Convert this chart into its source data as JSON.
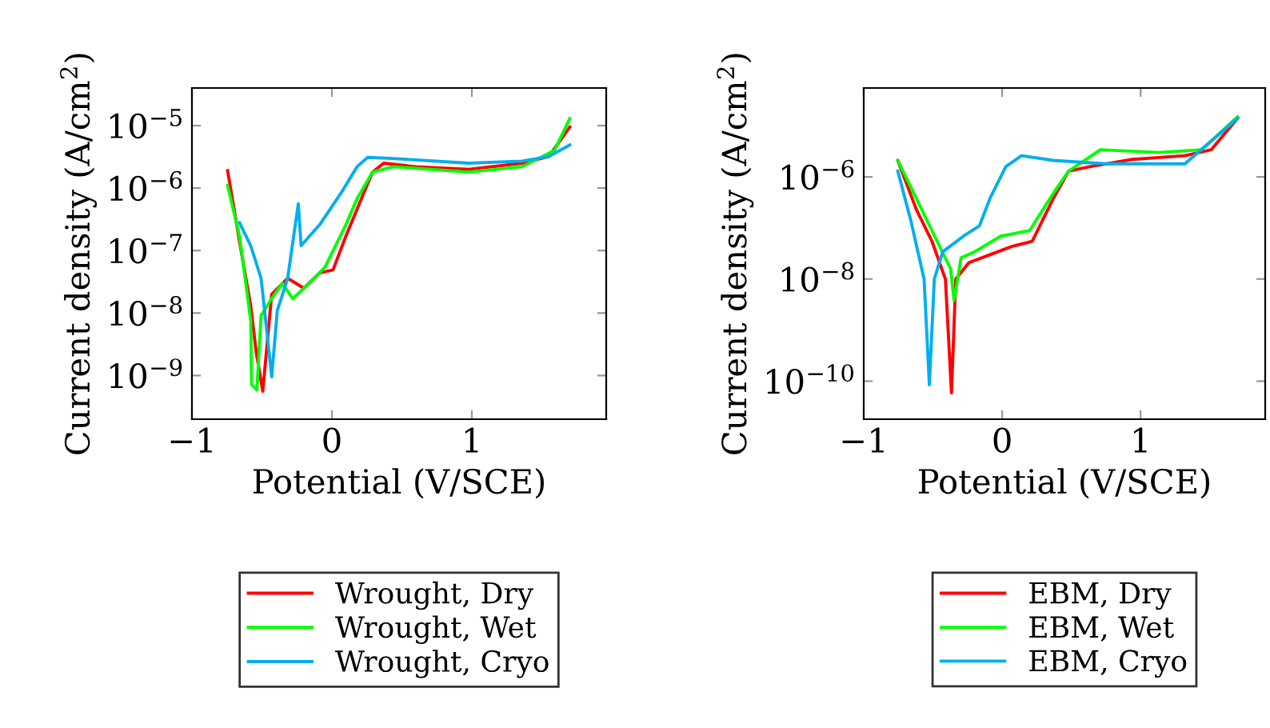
{
  "chart_data": [
    {
      "type": "line",
      "xlabel": "Potential (V/SCE)",
      "ylabel": "Current density (A/cm$^{2}$)",
      "log": "y",
      "legend": "bottom",
      "grid": false,
      "xlim": [
        -1,
        1.96
      ],
      "ylim": [
        2e-10,
        4e-05
      ],
      "xticks": [
        {
          "value": -1,
          "label": "−1"
        },
        0,
        1
      ],
      "yticks": [
        {
          "value": 1e-09,
          "label": "10$^{−9}$"
        },
        {
          "value": 1e-08,
          "label": "10$^{−8}$"
        },
        {
          "value": 1e-07,
          "label": "10$^{−7}$"
        },
        {
          "value": 1e-06,
          "label": "10$^{−6}$"
        },
        {
          "value": 1e-05,
          "label": "10$^{−5}$"
        }
      ],
      "series": [
        {
          "name": "Wrought, Dry",
          "color": "#ff0000",
          "x": [
            -0.745,
            -0.66,
            -0.58,
            -0.54,
            -0.494,
            -0.43,
            -0.316,
            -0.2,
            -0.087,
            0.008,
            0.1,
            0.18,
            0.29,
            0.37,
            0.6,
            0.98,
            1.36,
            1.55,
            1.7
          ],
          "values": [
            1.9e-06,
            1.4e-07,
            1.3e-08,
            2.3e-09,
            5.6e-10,
            2e-08,
            3.6e-08,
            2.5e-08,
            4.4e-08,
            4.9e-08,
            1.7e-07,
            4.6e-07,
            1.8e-06,
            2.5e-06,
            2.2e-06,
            2e-06,
            2.5e-06,
            3.2e-06,
            9.5e-06
          ]
        },
        {
          "name": "Wrought, Wet",
          "color": "#00ff00",
          "x": [
            -0.745,
            -0.66,
            -0.58,
            -0.574,
            -0.536,
            -0.506,
            -0.43,
            -0.354,
            -0.28,
            -0.163,
            -0.05,
            0.1,
            0.18,
            0.29,
            0.44,
            0.98,
            1.36,
            1.59,
            1.7
          ],
          "values": [
            1.1e-06,
            1.7e-07,
            7.6e-09,
            7.2e-10,
            5.9e-10,
            9.1e-09,
            1.7e-08,
            3e-08,
            1.7e-08,
            3e-08,
            5.4e-08,
            2.6e-07,
            6.8e-07,
            1.8e-06,
            2.2e-06,
            1.8e-06,
            2.2e-06,
            4e-06,
            1.3e-05
          ]
        },
        {
          "name": "Wrought, Cryo",
          "color": "#00aeef",
          "x": [
            -0.66,
            -0.58,
            -0.506,
            -0.43,
            -0.39,
            -0.316,
            -0.24,
            -0.22,
            -0.087,
            0.065,
            0.18,
            0.255,
            0.41,
            0.98,
            1.36,
            1.55,
            1.7
          ],
          "values": [
            2.8e-07,
            1.2e-07,
            3.6e-08,
            9.5e-10,
            1.1e-08,
            3.6e-08,
            5.6e-07,
            1.2e-07,
            2.6e-07,
            8.3e-07,
            2.2e-06,
            3.1e-06,
            3e-06,
            2.5e-06,
            2.7e-06,
            3.2e-06,
            4.9e-06
          ]
        }
      ]
    },
    {
      "type": "line",
      "xlabel": "Potential (V/SCE)",
      "ylabel": "Current density (A/cm$^{2}$)",
      "log": "y",
      "legend": "bottom",
      "grid": false,
      "xlim": [
        -1,
        1.9
      ],
      "ylim": [
        1.8e-11,
        5.5e-05
      ],
      "xticks": [
        {
          "value": -1,
          "label": "−1"
        },
        0,
        1
      ],
      "yticks": [
        {
          "value": 1e-10,
          "label": "10$^{−10}$"
        },
        {
          "value": 1e-08,
          "label": "10$^{−8}$"
        },
        {
          "value": 1e-06,
          "label": "10$^{−6}$"
        }
      ],
      "series": [
        {
          "name": "EBM, Dry",
          "color": "#ff0000",
          "x": [
            -0.754,
            -0.62,
            -0.507,
            -0.41,
            -0.366,
            -0.335,
            -0.24,
            -0.088,
            0.065,
            0.217,
            0.37,
            0.48,
            0.64,
            0.94,
            1.32,
            1.51,
            1.7
          ],
          "values": [
            2.1e-06,
            2.3e-07,
            5.5e-08,
            1e-08,
            5.9e-11,
            1e-08,
            2.1e-08,
            3e-08,
            4.3e-08,
            5.5e-08,
            3.8e-07,
            1.3e-06,
            1.6e-06,
            2.2e-06,
            2.6e-06,
            3.4e-06,
            1.4e-05
          ]
        },
        {
          "name": "EBM, Wet",
          "color": "#00ff00",
          "x": [
            -0.754,
            -0.62,
            -0.47,
            -0.373,
            -0.347,
            -0.297,
            -0.2,
            -0.011,
            0.198,
            0.37,
            0.48,
            0.71,
            1.13,
            1.44,
            1.7
          ],
          "values": [
            2.1e-06,
            3.8e-07,
            5.5e-08,
            1.6e-08,
            3.8e-09,
            2.6e-08,
            3.4e-08,
            6.9e-08,
            8.9e-08,
            4.8e-07,
            1.3e-06,
            3.4e-06,
            3e-06,
            3.4e-06,
            1.5e-05
          ]
        },
        {
          "name": "EBM, Cryo",
          "color": "#00aeef",
          "x": [
            -0.754,
            -0.66,
            -0.564,
            -0.526,
            -0.49,
            -0.43,
            -0.28,
            -0.164,
            -0.088,
            0.027,
            0.14,
            0.37,
            0.75,
            1.32,
            1.7
          ],
          "values": [
            1.3e-06,
            1.4e-07,
            1e-08,
            8.5e-11,
            1e-08,
            3.4e-08,
            6.9e-08,
            1.1e-07,
            3.8e-07,
            1.6e-06,
            2.6e-06,
            2.1e-06,
            1.8e-06,
            1.8e-06,
            1.4e-05
          ]
        }
      ]
    }
  ]
}
